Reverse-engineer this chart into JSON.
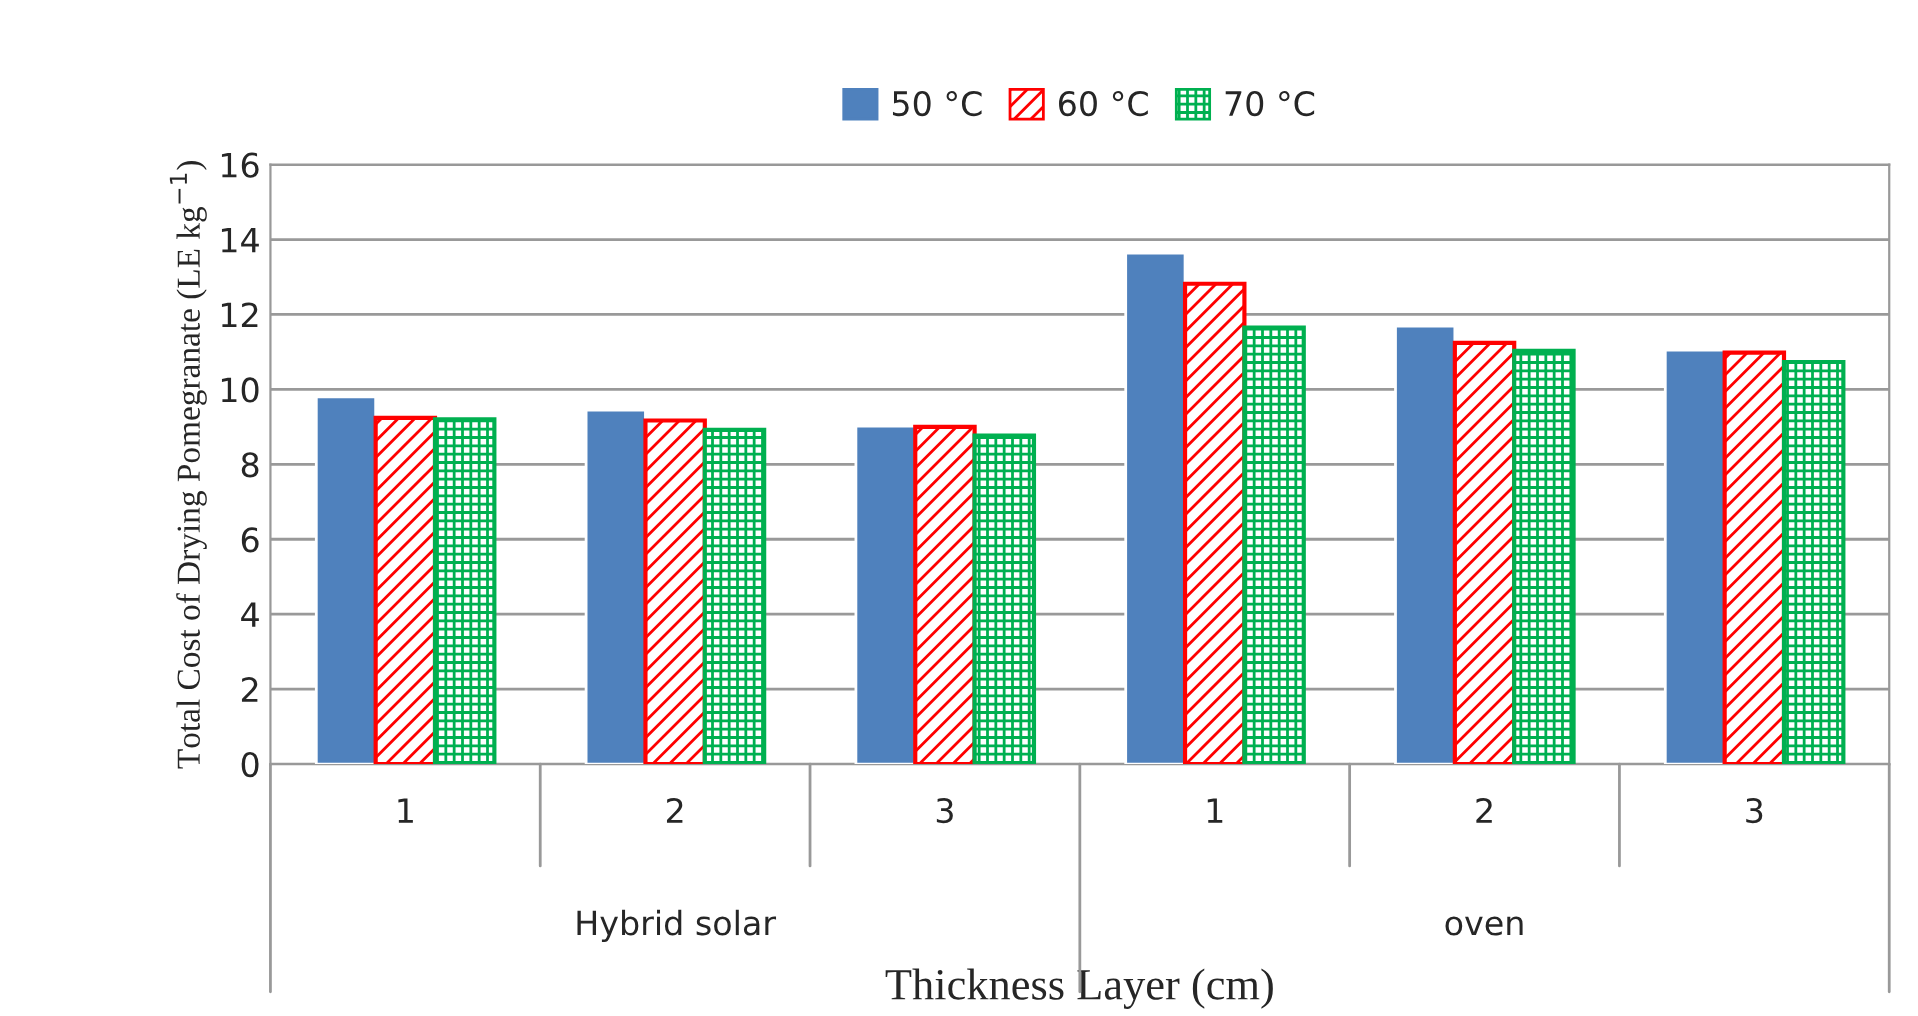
{
  "chart_data": {
    "type": "bar",
    "xlabel": "Thickness Layer (cm)",
    "ylabel": "Total Cost of Drying Pomegranate (LE kg$^{−1}$)",
    "categories": [
      "1",
      "2",
      "3",
      "1",
      "2",
      "3"
    ],
    "annotations": [
      "Hybrid solar",
      "oven"
    ],
    "series": [
      {
        "name": "50 °C",
        "color": "#4f81bd",
        "values": [
          9.8,
          9.45,
          9.02,
          13.64,
          11.69,
          11.05
        ]
      },
      {
        "name": "60 °C",
        "color": "#ff0000",
        "values": [
          9.24,
          9.17,
          9.0,
          12.82,
          11.24,
          10.98
        ]
      },
      {
        "name": "70 °C",
        "color": "#00b050",
        "values": [
          9.2,
          8.92,
          8.77,
          11.65,
          11.03,
          10.73
        ]
      }
    ],
    "ylim": [
      0,
      16
    ],
    "yticks": [
      0,
      2,
      4,
      6,
      8,
      10,
      12,
      14,
      16
    ],
    "grid": "y",
    "legend": "top"
  }
}
